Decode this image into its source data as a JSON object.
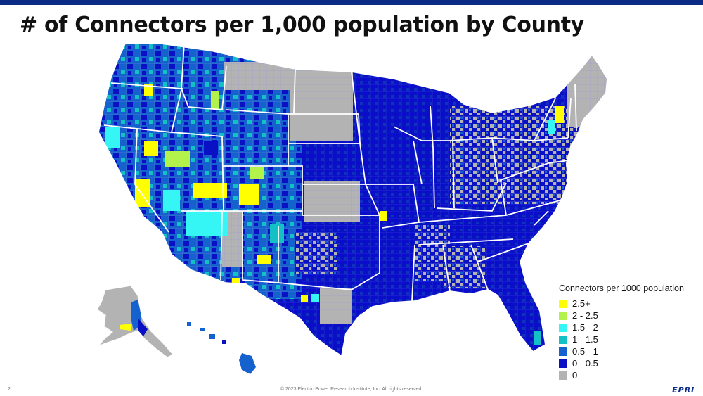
{
  "header": {
    "title": "# of Connectors per 1,000 population by County"
  },
  "legend": {
    "title": "Connectors per 1000 population",
    "items": [
      {
        "label": "2.5+",
        "color": "#ffff00"
      },
      {
        "label": "2 - 2.5",
        "color": "#b3f24a"
      },
      {
        "label": "1.5 - 2",
        "color": "#36f5f5"
      },
      {
        "label": "1 - 1.5",
        "color": "#12c0c6"
      },
      {
        "label": "0.5 - 1",
        "color": "#1562cf"
      },
      {
        "label": "0 - 0.5",
        "color": "#0a10c4"
      },
      {
        "label": "0",
        "color": "#b3b3b3"
      }
    ]
  },
  "footer": {
    "page_number": "2",
    "copyright": "© 2023 Electric Power Research Institute, Inc. All rights reserved.",
    "logo_text": "EPRI"
  },
  "colors": {
    "top_bar": "#0a2c84",
    "state_border": "#ffffff",
    "county_line": "#8a8ad6"
  }
}
